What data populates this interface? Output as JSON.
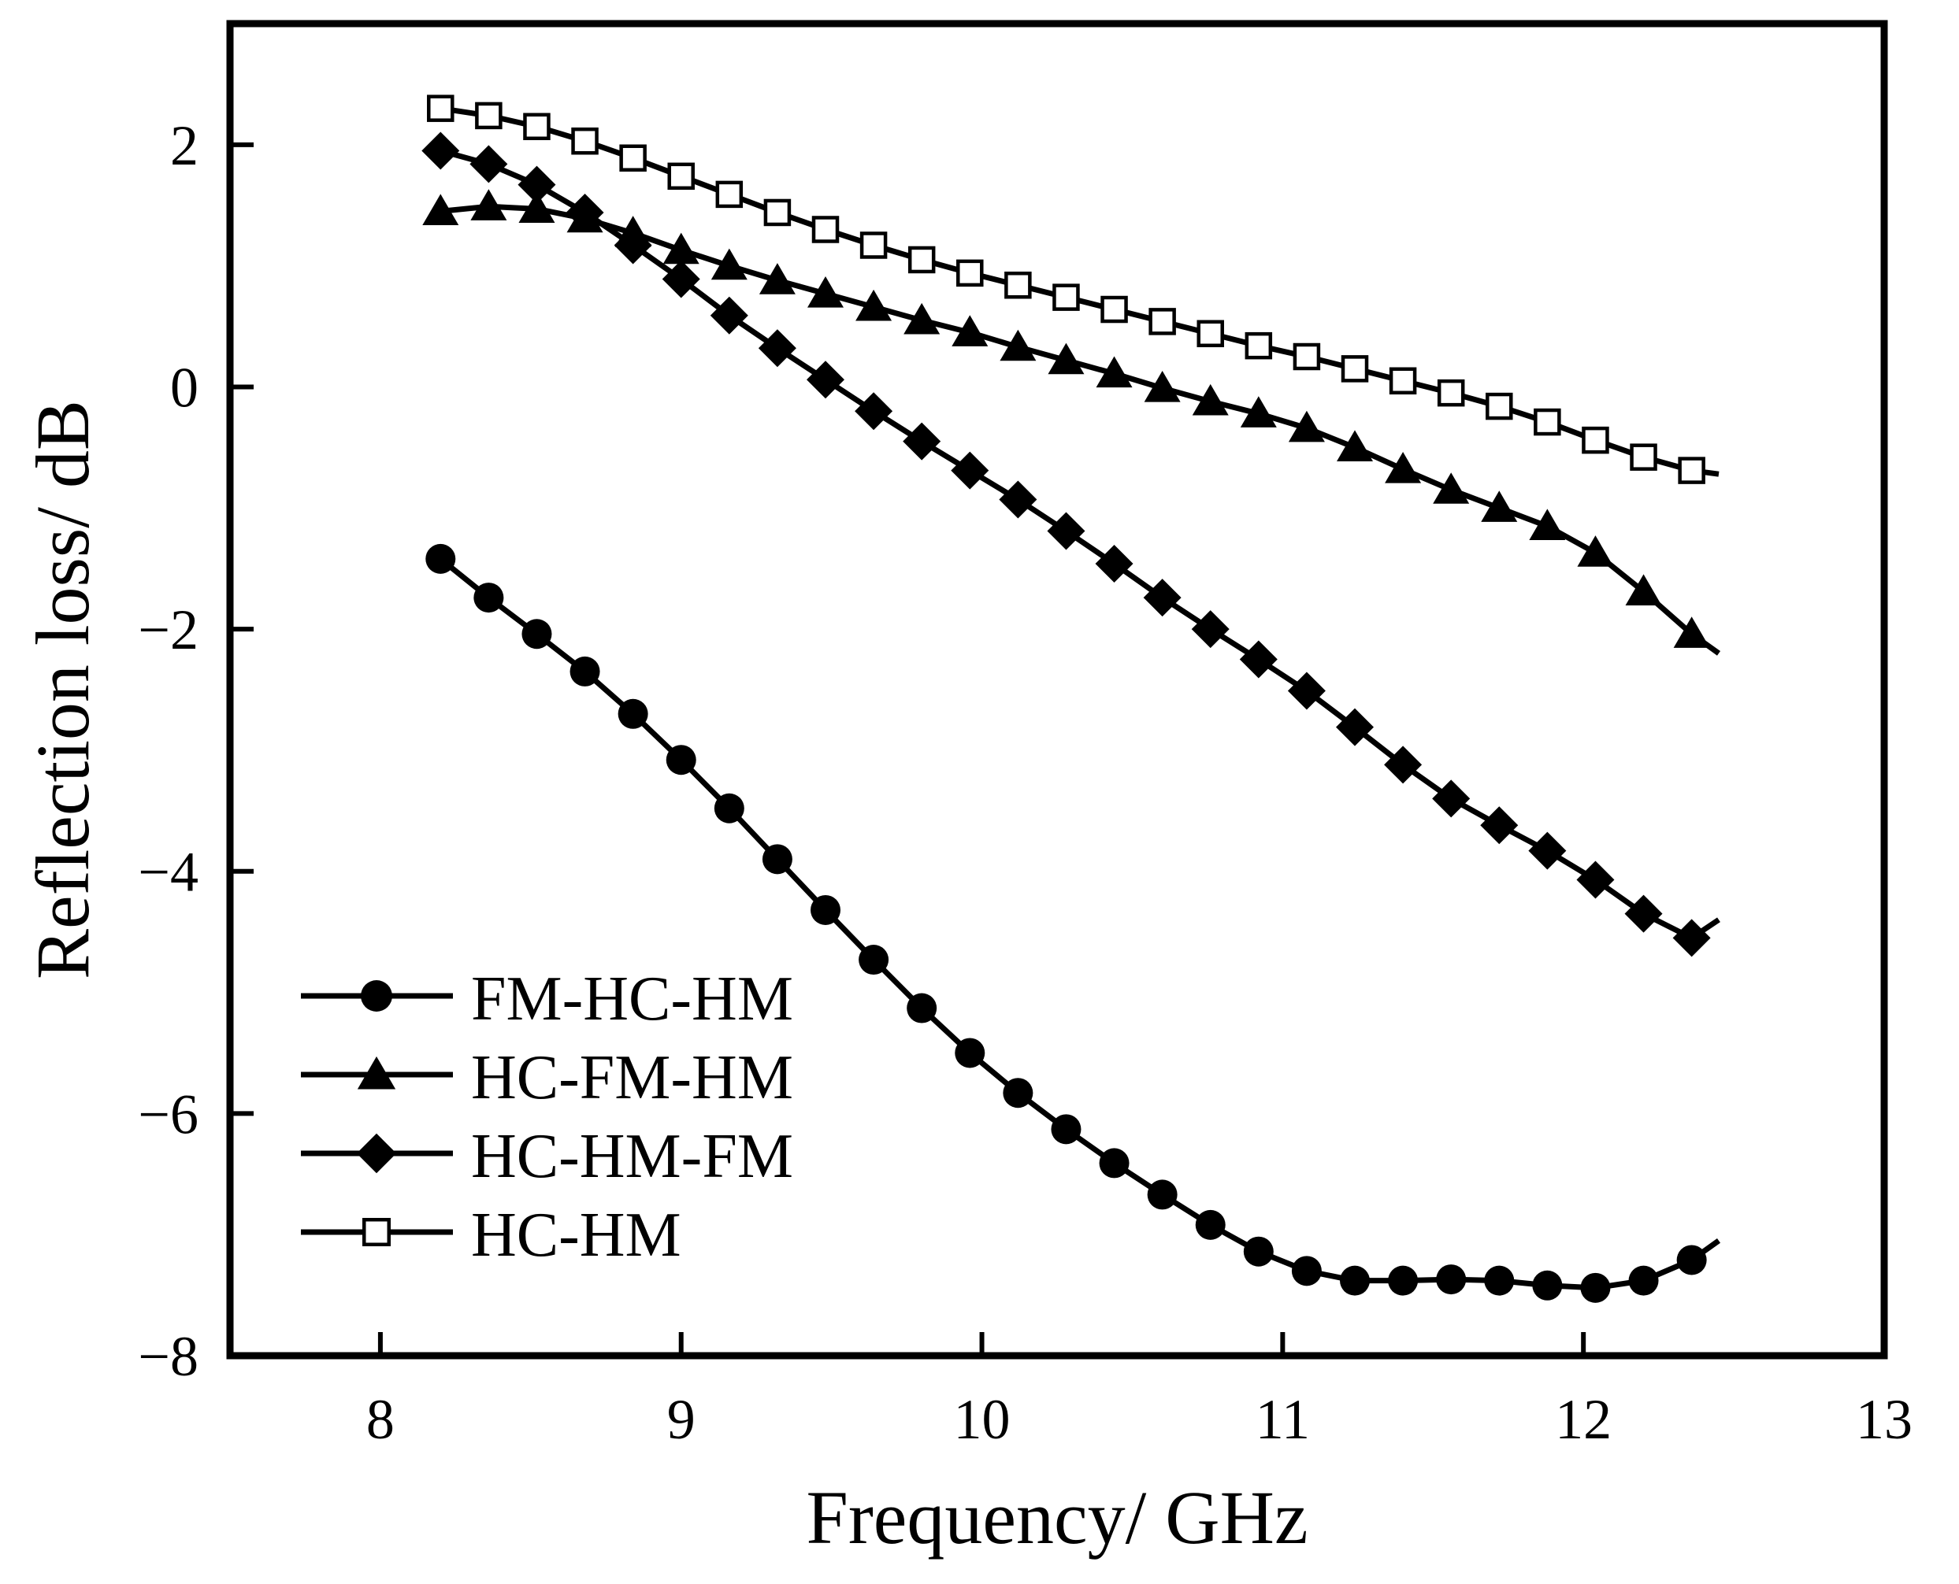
{
  "chart_data": {
    "type": "line",
    "title": "",
    "xlabel": "Frequency/ GHz",
    "ylabel": "Reflection loss/ dB",
    "xlim": [
      7.5,
      13
    ],
    "ylim": [
      -8,
      3
    ],
    "xticks": [
      8,
      9,
      10,
      11,
      12,
      13
    ],
    "xtick_labels": [
      "8",
      "9",
      "10",
      "11",
      "12",
      "13"
    ],
    "yticks": [
      -8,
      -6,
      -4,
      -2,
      0,
      2
    ],
    "ytick_labels": [
      "−8",
      "−6",
      "−4",
      "−2",
      "0",
      "2"
    ],
    "grid": false,
    "legend_position": "bottom-left",
    "x": [
      8.2,
      8.36,
      8.52,
      8.68,
      8.84,
      9.0,
      9.16,
      9.32,
      9.48,
      9.64,
      9.8,
      9.96,
      10.12,
      10.28,
      10.44,
      10.6,
      10.76,
      10.92,
      11.08,
      11.24,
      11.4,
      11.56,
      11.72,
      11.88,
      12.04,
      12.2,
      12.36
    ],
    "x_end": 12.45,
    "series": [
      {
        "name": "FM-HC-HM",
        "marker": "circle",
        "values": [
          -1.42,
          -1.74,
          -2.04,
          -2.35,
          -2.7,
          -3.08,
          -3.48,
          -3.9,
          -4.32,
          -4.73,
          -5.13,
          -5.5,
          -5.83,
          -6.13,
          -6.41,
          -6.67,
          -6.92,
          -7.14,
          -7.3,
          -7.38,
          -7.38,
          -7.37,
          -7.38,
          -7.42,
          -7.44,
          -7.38,
          -7.21
        ],
        "end_value": -7.05
      },
      {
        "name": "HC-FM-HM",
        "marker": "triangle",
        "values": [
          1.45,
          1.49,
          1.47,
          1.39,
          1.27,
          1.13,
          1.0,
          0.88,
          0.77,
          0.66,
          0.55,
          0.45,
          0.33,
          0.22,
          0.11,
          -0.01,
          -0.12,
          -0.22,
          -0.34,
          -0.5,
          -0.68,
          -0.85,
          -1.0,
          -1.15,
          -1.37,
          -1.69,
          -2.04
        ],
        "end_value": -2.2
      },
      {
        "name": "HC-HM-FM",
        "marker": "diamond",
        "values": [
          1.95,
          1.84,
          1.67,
          1.44,
          1.17,
          0.89,
          0.59,
          0.32,
          0.06,
          -0.2,
          -0.45,
          -0.69,
          -0.93,
          -1.19,
          -1.46,
          -1.74,
          -2.0,
          -2.25,
          -2.51,
          -2.81,
          -3.12,
          -3.4,
          -3.62,
          -3.83,
          -4.07,
          -4.35,
          -4.55
        ],
        "end_value": -4.4
      },
      {
        "name": "HC-HM",
        "marker": "open-square",
        "values": [
          2.3,
          2.24,
          2.15,
          2.03,
          1.89,
          1.74,
          1.59,
          1.44,
          1.3,
          1.17,
          1.05,
          0.94,
          0.84,
          0.74,
          0.64,
          0.54,
          0.44,
          0.34,
          0.25,
          0.15,
          0.05,
          -0.05,
          -0.16,
          -0.29,
          -0.44,
          -0.58,
          -0.69
        ],
        "end_value": -0.72
      }
    ]
  }
}
